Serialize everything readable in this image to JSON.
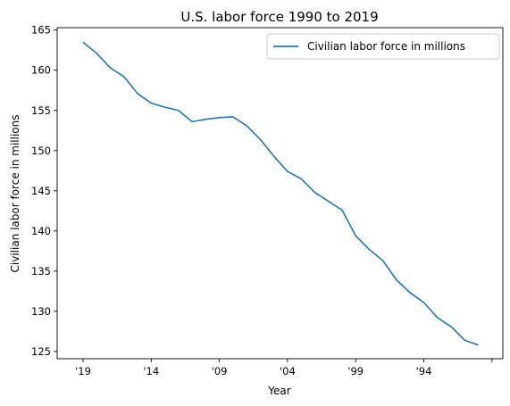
{
  "chart_data": {
    "type": "line",
    "title": "U.S. labor force 1990 to 2019",
    "xlabel": "Year",
    "ylabel": "Civilian labor force in millions",
    "x_ticks": [
      {
        "label": "'19",
        "year": 2019
      },
      {
        "label": "'14",
        "year": 2014
      },
      {
        "label": "'09",
        "year": 2009
      },
      {
        "label": "'04",
        "year": 2004
      },
      {
        "label": "'99",
        "year": 1999
      },
      {
        "label": "'94",
        "year": 1994
      },
      {
        "label": "",
        "year": 1989
      }
    ],
    "x_reversed": true,
    "xlim": [
      2020.9,
      1988.2
    ],
    "ylim": [
      124.1,
      165.3
    ],
    "y_ticks": [
      125,
      130,
      135,
      140,
      145,
      150,
      155,
      160,
      165
    ],
    "grid": false,
    "legend": {
      "location": "top-right"
    },
    "series": [
      {
        "name": "Civilian labor force in millions",
        "color": "#1f77b4",
        "x": [
          2019,
          2018,
          2017,
          2016,
          2015,
          2014,
          2013,
          2012,
          2011,
          2010,
          2009,
          2008,
          2007,
          2006,
          2005,
          2004,
          2003,
          2002,
          2001,
          2000,
          1999,
          1998,
          1997,
          1996,
          1995,
          1994,
          1993,
          1992,
          1991,
          1990
        ],
        "values": [
          163.5,
          162.1,
          160.3,
          159.2,
          157.1,
          155.9,
          155.4,
          155.0,
          153.6,
          153.9,
          154.1,
          154.2,
          153.1,
          151.4,
          149.3,
          147.4,
          146.5,
          144.8,
          143.7,
          142.6,
          139.4,
          137.7,
          136.3,
          133.9,
          132.3,
          131.1,
          129.2,
          128.1,
          126.4,
          125.8
        ]
      }
    ]
  }
}
